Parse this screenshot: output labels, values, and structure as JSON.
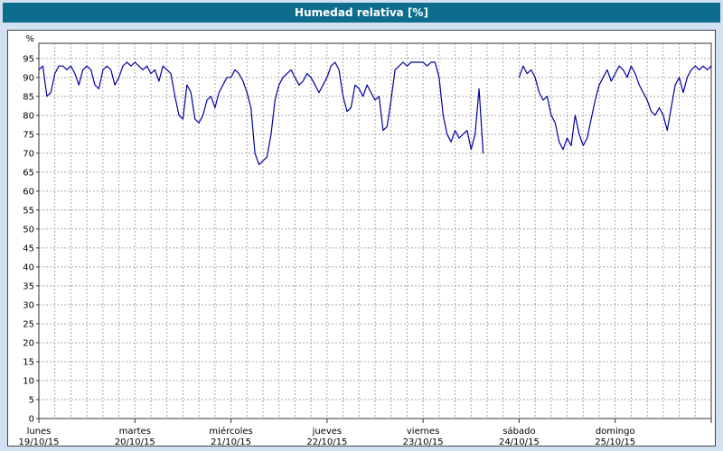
{
  "window": {
    "title": "Humedad relativa [%]"
  },
  "colors": {
    "titlebar_bg": "#0d6d8f",
    "titlebar_text": "#ffffff",
    "page_bg": "#d2e1f1",
    "plot_bg": "#ffffff",
    "grid": "#a8a8a8",
    "axis": "#333333",
    "line": "#0000a0",
    "text": "#000000"
  },
  "chart_data": {
    "type": "line",
    "title": "Humedad relativa [%]",
    "ylabel": "%",
    "grid": true,
    "legend_position": "none",
    "y_axis": {
      "min": 0,
      "max": 99,
      "tick_start": 0,
      "tick_end": 95,
      "tick_step": 5
    },
    "x_axis": {
      "total_hours": 168,
      "grid_step_hours": 4,
      "day_step_hours": 24
    },
    "days": [
      {
        "name": "lunes",
        "date": "19/10/15"
      },
      {
        "name": "martes",
        "date": "20/10/15"
      },
      {
        "name": "miércoles",
        "date": "21/10/15"
      },
      {
        "name": "jueves",
        "date": "22/10/15"
      },
      {
        "name": "viernes",
        "date": "23/10/15"
      },
      {
        "name": "sábado",
        "date": "24/10/15"
      },
      {
        "name": "domingo",
        "date": "25/10/15"
      }
    ],
    "series": [
      {
        "name": "Humedad relativa",
        "color": "#0000a0",
        "points": [
          [
            0,
            92
          ],
          [
            1,
            93
          ],
          [
            2,
            85
          ],
          [
            3,
            86
          ],
          [
            4,
            91
          ],
          [
            5,
            93
          ],
          [
            6,
            93
          ],
          [
            7,
            92
          ],
          [
            8,
            93
          ],
          [
            9,
            91
          ],
          [
            10,
            88
          ],
          [
            11,
            92
          ],
          [
            12,
            93
          ],
          [
            13,
            92
          ],
          [
            14,
            88
          ],
          [
            15,
            87
          ],
          [
            16,
            92
          ],
          [
            17,
            93
          ],
          [
            18,
            92
          ],
          [
            19,
            88
          ],
          [
            20,
            90
          ],
          [
            21,
            93
          ],
          [
            22,
            94
          ],
          [
            23,
            93
          ],
          [
            24,
            94
          ],
          [
            25,
            93
          ],
          [
            26,
            92
          ],
          [
            27,
            93
          ],
          [
            28,
            91
          ],
          [
            29,
            92
          ],
          [
            30,
            89
          ],
          [
            31,
            93
          ],
          [
            32,
            92
          ],
          [
            33,
            91
          ],
          [
            34,
            85
          ],
          [
            35,
            80
          ],
          [
            36,
            79
          ],
          [
            37,
            88
          ],
          [
            38,
            86
          ],
          [
            39,
            79
          ],
          [
            40,
            78
          ],
          [
            41,
            80
          ],
          [
            42,
            84
          ],
          [
            43,
            85
          ],
          [
            44,
            82
          ],
          [
            45,
            86
          ],
          [
            46,
            88
          ],
          [
            47,
            90
          ],
          [
            48,
            90
          ],
          [
            49,
            92
          ],
          [
            50,
            91
          ],
          [
            51,
            89
          ],
          [
            52,
            86
          ],
          [
            53,
            82
          ],
          [
            54,
            70
          ],
          [
            55,
            67
          ],
          [
            56,
            68
          ],
          [
            57,
            69
          ],
          [
            58,
            75
          ],
          [
            59,
            84
          ],
          [
            60,
            88
          ],
          [
            61,
            90
          ],
          [
            62,
            91
          ],
          [
            63,
            92
          ],
          [
            64,
            90
          ],
          [
            65,
            88
          ],
          [
            66,
            89
          ],
          [
            67,
            91
          ],
          [
            68,
            90
          ],
          [
            69,
            88
          ],
          [
            70,
            86
          ],
          [
            71,
            88
          ],
          [
            72,
            90
          ],
          [
            73,
            93
          ],
          [
            74,
            94
          ],
          [
            75,
            92
          ],
          [
            76,
            85
          ],
          [
            77,
            81
          ],
          [
            78,
            82
          ],
          [
            79,
            88
          ],
          [
            80,
            87
          ],
          [
            81,
            85
          ],
          [
            82,
            88
          ],
          [
            83,
            86
          ],
          [
            84,
            84
          ],
          [
            85,
            85
          ],
          [
            86,
            76
          ],
          [
            87,
            77
          ],
          [
            88,
            84
          ],
          [
            89,
            92
          ],
          [
            90,
            93
          ],
          [
            91,
            94
          ],
          [
            92,
            93
          ],
          [
            93,
            94
          ],
          [
            94,
            94
          ],
          [
            95,
            94
          ],
          [
            96,
            94
          ],
          [
            97,
            93
          ],
          [
            98,
            94
          ],
          [
            99,
            94
          ],
          [
            100,
            90
          ],
          [
            101,
            80
          ],
          [
            102,
            75
          ],
          [
            103,
            73
          ],
          [
            104,
            76
          ],
          [
            105,
            74
          ],
          [
            106,
            75
          ],
          [
            107,
            76
          ],
          [
            108,
            71
          ],
          [
            109,
            75
          ],
          [
            110,
            87
          ],
          [
            111,
            70
          ],
          [
            112,
            null
          ],
          [
            113,
            null
          ],
          [
            114,
            null
          ],
          [
            115,
            null
          ],
          [
            116,
            null
          ],
          [
            117,
            null
          ],
          [
            118,
            null
          ],
          [
            119,
            null
          ],
          [
            120,
            90
          ],
          [
            121,
            93
          ],
          [
            122,
            91
          ],
          [
            123,
            92
          ],
          [
            124,
            90
          ],
          [
            125,
            86
          ],
          [
            126,
            84
          ],
          [
            127,
            85
          ],
          [
            128,
            80
          ],
          [
            129,
            78
          ],
          [
            130,
            73
          ],
          [
            131,
            71
          ],
          [
            132,
            74
          ],
          [
            133,
            72
          ],
          [
            134,
            80
          ],
          [
            135,
            75
          ],
          [
            136,
            72
          ],
          [
            137,
            74
          ],
          [
            138,
            79
          ],
          [
            139,
            84
          ],
          [
            140,
            88
          ],
          [
            141,
            90
          ],
          [
            142,
            92
          ],
          [
            143,
            89
          ],
          [
            144,
            91
          ],
          [
            145,
            93
          ],
          [
            146,
            92
          ],
          [
            147,
            90
          ],
          [
            148,
            93
          ],
          [
            149,
            91
          ],
          [
            150,
            88
          ],
          [
            151,
            86
          ],
          [
            152,
            84
          ],
          [
            153,
            81
          ],
          [
            154,
            80
          ],
          [
            155,
            82
          ],
          [
            156,
            80
          ],
          [
            157,
            76
          ],
          [
            158,
            82
          ],
          [
            159,
            88
          ],
          [
            160,
            90
          ],
          [
            161,
            86
          ],
          [
            162,
            90
          ],
          [
            163,
            92
          ],
          [
            164,
            93
          ],
          [
            165,
            92
          ],
          [
            166,
            93
          ],
          [
            167,
            92
          ],
          [
            168,
            93
          ]
        ]
      }
    ]
  }
}
